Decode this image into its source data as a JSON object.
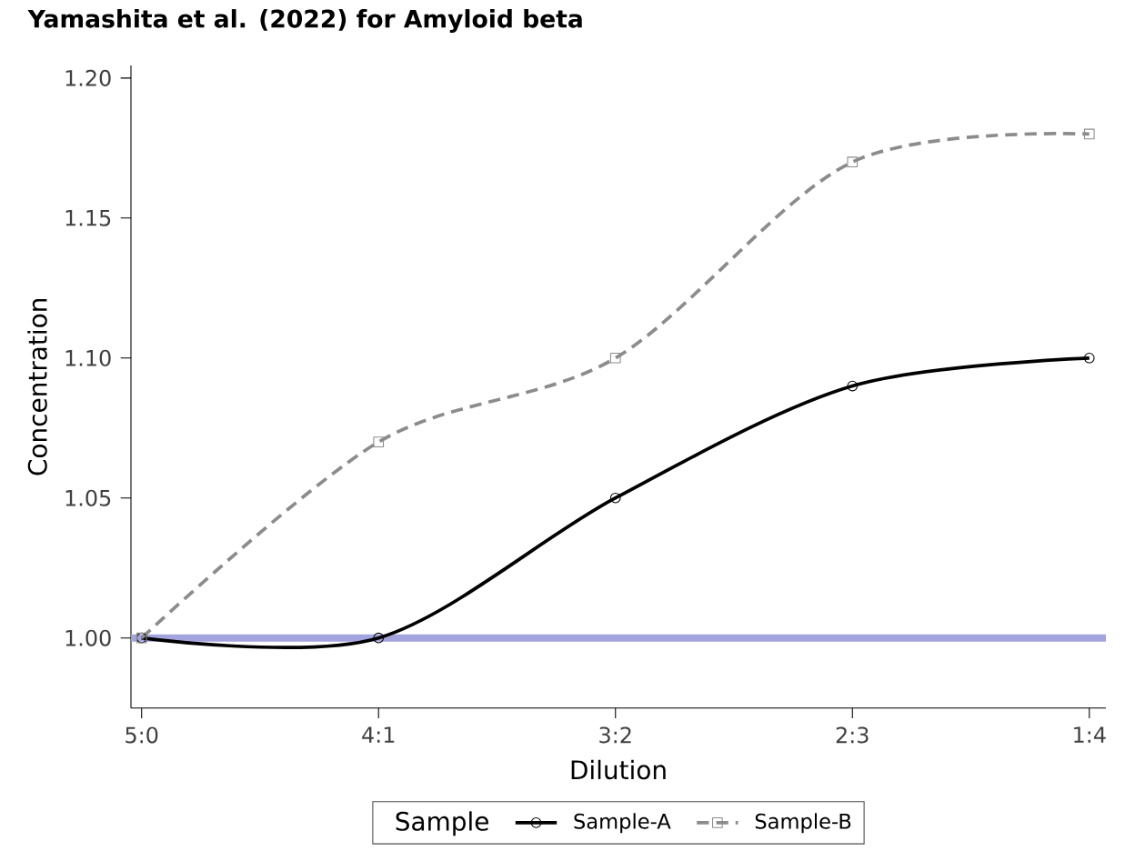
{
  "chart_data": {
    "type": "line",
    "title": "Yamashita et al. (2022) for Amyloid beta",
    "xlabel": "Dilution",
    "ylabel": "Concentration",
    "legend_title": "Sample",
    "categories": [
      "5:0",
      "4:1",
      "3:2",
      "2:3",
      "1:4"
    ],
    "series": [
      {
        "name": "Sample-A",
        "color": "#000000",
        "values": [
          1.0,
          1.0,
          1.05,
          1.09,
          1.1
        ],
        "marker": "circle",
        "line_style": "solid"
      },
      {
        "name": "Sample-B",
        "color": "#8c8c8c",
        "values": [
          1.0,
          1.07,
          1.1,
          1.17,
          1.18
        ],
        "marker": "square",
        "line_style": "dashed"
      }
    ],
    "ylim": [
      0.975,
      1.2045
    ],
    "yticks": [
      {
        "value": 1.0,
        "label": "1.00"
      },
      {
        "value": 1.05,
        "label": "1.05"
      },
      {
        "value": 1.1,
        "label": "1.10"
      },
      {
        "value": 1.15,
        "label": "1.15"
      },
      {
        "value": 1.2,
        "label": "1.20"
      }
    ],
    "ref_lines": [
      {
        "axis": "y",
        "value": 1.0,
        "color": "#a3a3de"
      }
    ],
    "grid": false,
    "legend": "bottom"
  }
}
